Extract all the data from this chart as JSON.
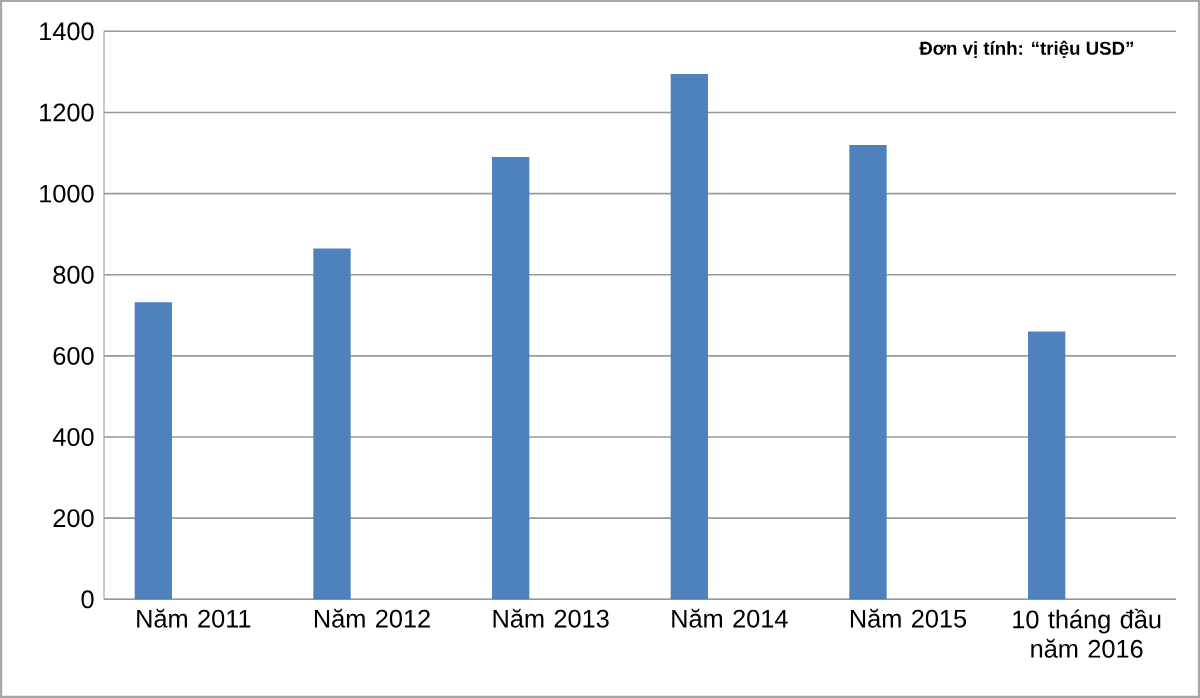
{
  "chart_data": {
    "type": "bar",
    "categories": [
      "Năm 2011",
      "Năm 2012",
      "Năm 2013",
      "Năm 2014",
      "Năm 2015",
      "10 tháng đầu năm 2016"
    ],
    "values": [
      732,
      865,
      1090,
      1295,
      1120,
      660
    ],
    "color": "#4f81bd",
    "ylim": [
      0,
      1400
    ],
    "yticks": [
      0,
      200,
      400,
      600,
      800,
      1000,
      1200,
      1400
    ],
    "grid": "y",
    "annotations": [
      "Đơn vị tính: “triệu USD”"
    ]
  }
}
